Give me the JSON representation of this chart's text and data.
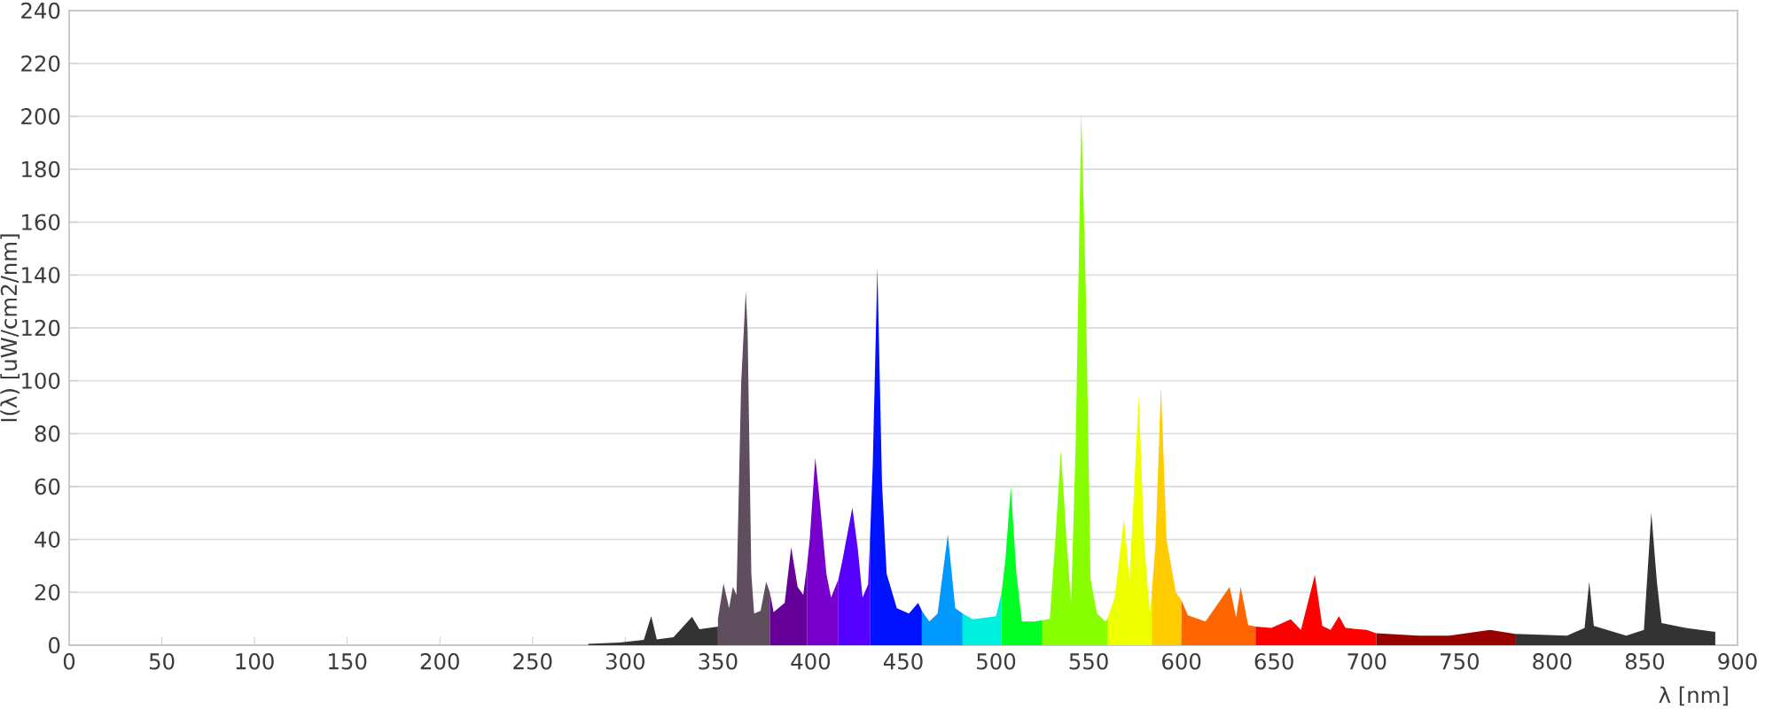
{
  "chart_data": {
    "type": "area",
    "xlabel": "λ [nm]",
    "ylabel": "I(λ) [uW/cm2/nm]",
    "xlim": [
      0,
      900
    ],
    "ylim": [
      0,
      240
    ],
    "xticks": [
      0,
      50,
      100,
      150,
      200,
      250,
      300,
      350,
      400,
      450,
      500,
      550,
      600,
      650,
      700,
      750,
      800,
      850,
      900
    ],
    "yticks": [
      0,
      20,
      40,
      60,
      80,
      100,
      120,
      140,
      160,
      180,
      200,
      220,
      240
    ],
    "grid": "y",
    "series": [
      {
        "color": "#333333",
        "x": [
          280,
          297,
          310,
          314,
          317,
          326,
          336,
          340,
          350
        ],
        "values": [
          0.5,
          1,
          2,
          11,
          2.2,
          3,
          10.7,
          6,
          7
        ]
      },
      {
        "color": "#5e4e5e",
        "x": [
          350,
          353,
          356,
          358,
          360,
          362.5,
          365,
          366,
          368,
          369.5,
          373,
          376,
          378
        ],
        "values": [
          10,
          23.4,
          14,
          22,
          19,
          99,
          134,
          119,
          27,
          12,
          13,
          24,
          20
        ]
      },
      {
        "color": "#660099",
        "x": [
          378,
          380,
          386,
          389.5,
          393,
          396,
          398
        ],
        "values": [
          20,
          12.5,
          16,
          37,
          22,
          19,
          30
        ]
      },
      {
        "color": "#7700cc",
        "x": [
          398,
          399.5,
          402.5,
          405,
          408.5,
          411,
          415
        ],
        "values": [
          30,
          40,
          71,
          54,
          27,
          18,
          25
        ]
      },
      {
        "color": "#5500ff",
        "x": [
          415,
          417,
          422.5,
          425.5,
          428,
          431,
          432
        ],
        "values": [
          25,
          31.7,
          52,
          36,
          18,
          23,
          40
        ]
      },
      {
        "color": "#0011ff",
        "x": [
          432,
          433.5,
          436,
          438.5,
          441,
          446.5,
          453,
          458,
          460
        ],
        "values": [
          40,
          68,
          143,
          61,
          27,
          14,
          12,
          16,
          13
        ]
      },
      {
        "color": "#0099ff",
        "x": [
          460,
          464,
          468.5,
          474,
          478,
          482
        ],
        "values": [
          13,
          9,
          12,
          42,
          14,
          12
        ]
      },
      {
        "color": "#00eedd",
        "x": [
          482,
          484.5,
          487.5,
          500,
          503
        ],
        "values": [
          12,
          11,
          9.8,
          11,
          20
        ]
      },
      {
        "color": "#00ff22",
        "x": [
          503,
          505,
          508,
          511,
          514,
          521,
          525
        ],
        "values": [
          20,
          32,
          60,
          27,
          9,
          9,
          9.5
        ]
      },
      {
        "color": "#88ff00",
        "x": [
          525,
          529,
          532,
          535,
          538,
          540.5,
          543,
          546,
          548.5,
          551,
          554.5,
          559,
          560
        ],
        "values": [
          9.5,
          10,
          40,
          74,
          40,
          16,
          77,
          201.5,
          132,
          25,
          12,
          9,
          10
        ]
      },
      {
        "color": "#eeff00",
        "x": [
          560,
          564,
          569,
          572,
          577,
          580,
          583,
          584
        ],
        "values": [
          10,
          18,
          48,
          25,
          94.5,
          38,
          12,
          20
        ]
      },
      {
        "color": "#ffcc00",
        "x": [
          584,
          586,
          589,
          592,
          597,
          600
        ],
        "values": [
          20,
          38,
          98,
          40,
          20,
          17
        ]
      },
      {
        "color": "#ff6600",
        "x": [
          600,
          603.5,
          613,
          626,
          629.5,
          632,
          636,
          640
        ],
        "values": [
          17,
          11.3,
          9,
          22,
          10.6,
          22,
          7.6,
          7
        ]
      },
      {
        "color": "#ff0000",
        "x": [
          640,
          648.5,
          659,
          664.5,
          672,
          676,
          680.5,
          685,
          688.5,
          700,
          705
        ],
        "values": [
          7,
          6.5,
          9.8,
          5.8,
          26.6,
          7.3,
          5.8,
          11,
          6.5,
          5.8,
          4.5
        ]
      },
      {
        "color": "#990000",
        "x": [
          705,
          728,
          744.5,
          766.5,
          780
        ],
        "values": [
          4.5,
          3.6,
          3.6,
          5.8,
          4.3
        ]
      },
      {
        "color": "#333333",
        "x": [
          780,
          808,
          817.5,
          820,
          822.5,
          840,
          849.5,
          853.5,
          856.5,
          859,
          872,
          888
        ],
        "values": [
          4.3,
          3.6,
          6.5,
          24,
          7.3,
          3.6,
          5.8,
          50,
          24,
          8.4,
          6.5,
          5
        ]
      }
    ]
  }
}
